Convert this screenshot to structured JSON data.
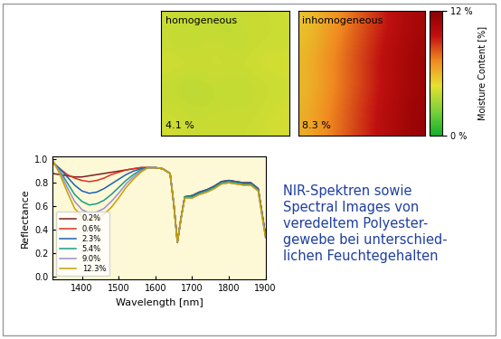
{
  "chart_data": [
    {
      "type": "line",
      "x_label": "Wavelength [nm]",
      "y_label": "Reflectance",
      "x": [
        1320,
        1340,
        1360,
        1380,
        1400,
        1420,
        1440,
        1460,
        1480,
        1500,
        1520,
        1540,
        1560,
        1580,
        1600,
        1620,
        1640,
        1650,
        1660,
        1670,
        1680,
        1700,
        1720,
        1740,
        1760,
        1780,
        1800,
        1820,
        1840,
        1860,
        1880,
        1900
      ],
      "xlim": [
        1320,
        1900
      ],
      "xticks": [
        1400,
        1500,
        1600,
        1700,
        1800,
        1900
      ],
      "ylim": [
        -0.03,
        1.03
      ],
      "yticks": [
        {
          "value": 0.0,
          "label": "0.0"
        },
        {
          "value": 0.2,
          "label": "0.2"
        },
        {
          "value": 0.4,
          "label": "0.4"
        },
        {
          "value": 0.6,
          "label": "0.6"
        },
        {
          "value": 0.8,
          "label": "0.8"
        },
        {
          "value": 1.0,
          "label": "1.0"
        }
      ],
      "legend": "lower left",
      "grid": false,
      "series": [
        {
          "name": "0.2%",
          "color": "#7f1f1f",
          "values": [
            0.88,
            0.87,
            0.86,
            0.85,
            0.85,
            0.86,
            0.87,
            0.88,
            0.89,
            0.9,
            0.91,
            0.92,
            0.93,
            0.93,
            0.93,
            0.92,
            0.88,
            0.62,
            0.29,
            0.5,
            0.68,
            0.69,
            0.72,
            0.74,
            0.77,
            0.81,
            0.82,
            0.81,
            0.8,
            0.8,
            0.75,
            0.35
          ]
        },
        {
          "name": "0.6%",
          "color": "#e03020",
          "values": [
            0.97,
            0.92,
            0.87,
            0.84,
            0.82,
            0.81,
            0.82,
            0.84,
            0.87,
            0.89,
            0.91,
            0.92,
            0.93,
            0.93,
            0.93,
            0.92,
            0.88,
            0.62,
            0.29,
            0.5,
            0.68,
            0.69,
            0.72,
            0.74,
            0.77,
            0.81,
            0.82,
            0.81,
            0.8,
            0.8,
            0.75,
            0.35
          ]
        },
        {
          "name": "2.3%",
          "color": "#2060b0",
          "values": [
            0.98,
            0.92,
            0.85,
            0.78,
            0.73,
            0.71,
            0.72,
            0.75,
            0.79,
            0.83,
            0.87,
            0.9,
            0.92,
            0.93,
            0.93,
            0.92,
            0.88,
            0.62,
            0.29,
            0.5,
            0.68,
            0.69,
            0.72,
            0.74,
            0.77,
            0.81,
            0.82,
            0.81,
            0.8,
            0.8,
            0.75,
            0.35
          ]
        },
        {
          "name": "5.4%",
          "color": "#1a9a8a",
          "values": [
            0.98,
            0.9,
            0.8,
            0.7,
            0.64,
            0.61,
            0.62,
            0.65,
            0.7,
            0.76,
            0.82,
            0.87,
            0.91,
            0.93,
            0.93,
            0.92,
            0.88,
            0.62,
            0.29,
            0.5,
            0.68,
            0.68,
            0.71,
            0.73,
            0.76,
            0.8,
            0.81,
            0.8,
            0.79,
            0.79,
            0.74,
            0.34
          ]
        },
        {
          "name": "9.0%",
          "color": "#9a8fd0",
          "values": [
            0.99,
            0.89,
            0.76,
            0.64,
            0.57,
            0.54,
            0.55,
            0.58,
            0.64,
            0.71,
            0.79,
            0.85,
            0.9,
            0.93,
            0.93,
            0.92,
            0.88,
            0.62,
            0.29,
            0.5,
            0.67,
            0.67,
            0.7,
            0.72,
            0.75,
            0.79,
            0.8,
            0.79,
            0.78,
            0.78,
            0.73,
            0.33
          ]
        },
        {
          "name": "12.3%",
          "color": "#c8a000",
          "values": [
            1.0,
            0.87,
            0.72,
            0.58,
            0.51,
            0.49,
            0.5,
            0.53,
            0.59,
            0.67,
            0.76,
            0.83,
            0.89,
            0.93,
            0.93,
            0.92,
            0.88,
            0.62,
            0.29,
            0.5,
            0.67,
            0.67,
            0.7,
            0.72,
            0.75,
            0.79,
            0.8,
            0.79,
            0.78,
            0.78,
            0.73,
            0.33
          ]
        }
      ]
    },
    {
      "type": "heatmap",
      "tick_labels": false,
      "panels": [
        {
          "title": "homogeneous",
          "label": "4.1 %",
          "cells": [
            [
              4.2,
              4.0,
              4.1,
              3.9,
              4.0,
              4.2,
              4.1,
              4.3
            ],
            [
              4.0,
              3.9,
              4.0,
              4.1,
              3.9,
              4.0,
              4.2,
              4.1
            ],
            [
              4.4,
              4.3,
              4.2,
              4.3,
              4.2,
              4.3,
              4.4,
              4.5
            ],
            [
              4.0,
              3.8,
              3.9,
              4.0,
              3.9,
              4.0,
              4.1,
              4.2
            ],
            [
              4.1,
              4.0,
              3.9,
              4.0,
              4.1,
              4.0,
              4.2,
              4.3
            ],
            [
              4.3,
              4.2,
              4.1,
              4.2,
              4.1,
              4.2,
              4.3,
              4.4
            ]
          ]
        },
        {
          "title": "inhomogeneous",
          "label": "8.3 %",
          "cells": [
            [
              5.6,
              6.3,
              7.0,
              7.8,
              8.6,
              9.4,
              10.2,
              10.8
            ],
            [
              5.8,
              6.5,
              7.3,
              8.1,
              8.9,
              9.7,
              10.4,
              11.0
            ],
            [
              6.0,
              6.8,
              7.5,
              8.3,
              9.1,
              9.9,
              10.6,
              11.2
            ],
            [
              5.9,
              6.6,
              7.4,
              8.2,
              9.0,
              9.8,
              10.5,
              11.1
            ],
            [
              6.1,
              6.9,
              7.6,
              8.4,
              9.2,
              10.0,
              10.7,
              11.3
            ],
            [
              6.2,
              7.0,
              7.7,
              8.5,
              9.3,
              10.1,
              10.8,
              11.4
            ]
          ]
        }
      ],
      "colorbar": {
        "label": "Moisture Content [%]",
        "range": [
          0,
          12
        ],
        "ticks": [
          {
            "value": 0,
            "label": "0 %"
          },
          {
            "value": 12,
            "label": "12 %"
          }
        ]
      }
    }
  ],
  "caption": "NIR-Spektren sowie\nSpectral Images von\nveredeltem Polyester-\ngewebe bei unterschied-\nlichen Feuchtegehalten"
}
